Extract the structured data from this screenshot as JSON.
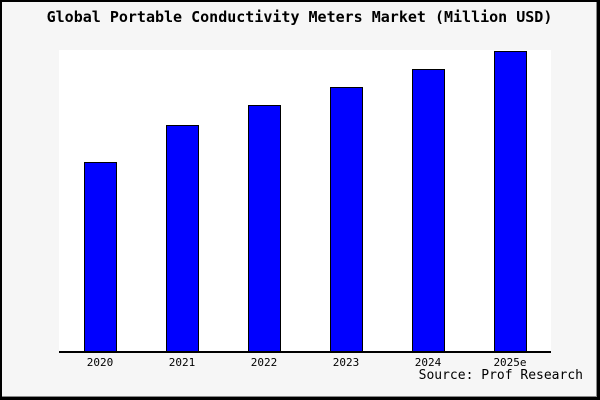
{
  "window": {
    "background": "#f6f6f6",
    "border_color": "#000000"
  },
  "chart_data": {
    "type": "bar",
    "title": "Global Portable Conductivity Meters Market (Million USD)",
    "categories": [
      "2020",
      "2021",
      "2022",
      "2023",
      "2024",
      "2025e"
    ],
    "values": [
      62.9,
      75.2,
      81.8,
      87.7,
      93.7,
      99.7
    ],
    "value_scale_note": "no numeric y-axis shown in image; values are bar heights as percent of plot-area height",
    "ylim": [
      0,
      100
    ],
    "xlabel": "",
    "ylabel": "",
    "grid": false,
    "legend": "none",
    "bar_color": "#0000ff",
    "bar_border_color": "#000000",
    "bar_width_frac": 0.4,
    "plot_background": "#ffffff",
    "source": "Source: Prof Research"
  }
}
